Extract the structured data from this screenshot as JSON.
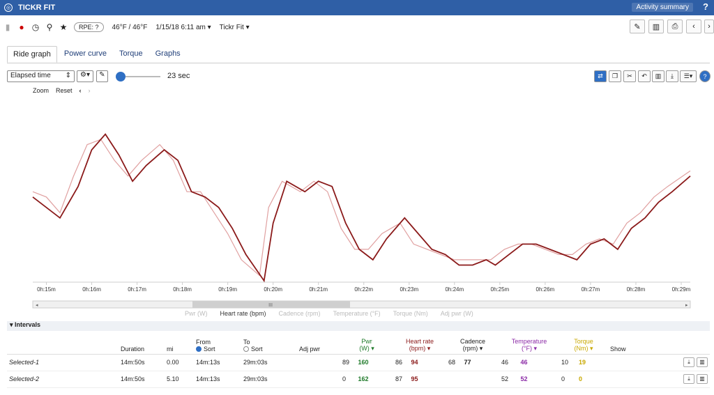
{
  "app": {
    "title": "TICKR FIT",
    "summary_label": "Activity summary",
    "help": "?"
  },
  "toolbar": {
    "rpe": "RPE: ?",
    "temp": "46°F / 46°F",
    "datetime": "1/15/18 6:11 am ▾",
    "device": "Tickr Fit ▾"
  },
  "tabs": [
    "Ride graph",
    "Power curve",
    "Torque",
    "Graphs"
  ],
  "controls": {
    "x_mode": "Elapsed time",
    "smoothing_value": "23 sec",
    "zoom": "Zoom",
    "reset": "Reset"
  },
  "legend": [
    "Pwr (W)",
    "Heart rate (bpm)",
    "Cadence (rpm)",
    "Temperature (°F)",
    "Torque (Nm)",
    "Adj pwr (W)"
  ],
  "colors": {
    "header": "#2f5fa6",
    "hr": "#8b1a1a",
    "hr_light": "#e0a0a0",
    "pwr": "#1f7a2a",
    "temp": "#8b2aa6",
    "torque": "#c8a800"
  },
  "chart_data": {
    "type": "line",
    "x_ticks": [
      "0h:15m",
      "0h:16m",
      "0h:17m",
      "0h:18m",
      "0h:19m",
      "0h:20m",
      "0h:21m",
      "0h:22m",
      "0h:23m",
      "0h:24m",
      "0h:25m",
      "0h:26m",
      "0h:27m",
      "0h:28m",
      "0h:29m"
    ],
    "xlim": [
      14.7,
      29.2
    ],
    "ylim": [
      79,
      112
    ],
    "series": [
      {
        "name": "Heart rate (bpm)",
        "x": [
          14.7,
          15.0,
          15.3,
          15.7,
          16.0,
          16.3,
          16.6,
          16.9,
          17.2,
          17.6,
          17.9,
          18.2,
          18.5,
          18.8,
          19.1,
          19.4,
          19.8,
          20.0,
          20.3,
          20.7,
          21.0,
          21.3,
          21.6,
          21.9,
          22.2,
          22.5,
          22.9,
          23.2,
          23.5,
          23.8,
          24.1,
          24.4,
          24.7,
          24.9,
          25.2,
          25.5,
          25.8,
          26.1,
          26.4,
          26.7,
          27.0,
          27.3,
          27.6,
          27.9,
          28.2,
          28.5,
          28.8,
          29.2
        ],
        "values": [
          95,
          93,
          91,
          97,
          104,
          107,
          103,
          98,
          101,
          104,
          102,
          96,
          95,
          93,
          89,
          84,
          79,
          90,
          98,
          96,
          98,
          97,
          90,
          85,
          83,
          87,
          91,
          88,
          85,
          84,
          82,
          82,
          83,
          82,
          84,
          86,
          86,
          85,
          84,
          83,
          86,
          87,
          85,
          89,
          91,
          94,
          96,
          99
        ]
      },
      {
        "name": "Heart rate (smoothed)",
        "x": [
          14.7,
          15.0,
          15.3,
          15.6,
          15.9,
          16.2,
          16.5,
          16.8,
          17.1,
          17.5,
          17.8,
          18.1,
          18.4,
          18.7,
          19.0,
          19.3,
          19.7,
          19.9,
          20.2,
          20.6,
          20.9,
          21.2,
          21.5,
          21.8,
          22.1,
          22.4,
          22.8,
          23.1,
          23.4,
          23.7,
          24.0,
          24.3,
          24.6,
          24.8,
          25.1,
          25.4,
          25.7,
          26.0,
          26.3,
          26.6,
          26.9,
          27.2,
          27.5,
          27.8,
          28.1,
          28.4,
          28.7,
          29.2
        ],
        "values": [
          96,
          95,
          92,
          99,
          105,
          106,
          102,
          99,
          102,
          105,
          102,
          96,
          96,
          92,
          88,
          83,
          80,
          93,
          98,
          96,
          98,
          96,
          89,
          85,
          85,
          88,
          90,
          86,
          85,
          84,
          83,
          83,
          83,
          83,
          85,
          86,
          86,
          85,
          84,
          84,
          86,
          87,
          86,
          90,
          92,
          95,
          97,
          100
        ]
      }
    ]
  },
  "intervals": {
    "header": "▾ Intervals",
    "columns": {
      "duration": "Duration",
      "mi": "mi",
      "from": "From",
      "from_sort": "Sort",
      "to": "To",
      "to_sort": "Sort",
      "adj_pwr": "Adj pwr",
      "pwr": "Pwr",
      "pwr_unit": "(W) ▾",
      "hr": "Heart rate",
      "hr_unit": "(bpm) ▾",
      "cad": "Cadence",
      "cad_unit": "(rpm) ▾",
      "temp": "Temperature",
      "temp_unit": "(°F) ▾",
      "torque": "Torque",
      "torque_unit": "(Nm) ▾",
      "show": "Show"
    },
    "rows": [
      {
        "name": "Selected-1",
        "duration": "14m:50s",
        "mi": "0.00",
        "from": "14m:13s",
        "to": "29m:03s",
        "pwr_avg": "89",
        "pwr_max": "160",
        "hr_avg": "86",
        "hr_max": "94",
        "cad_avg": "68",
        "cad_max": "77",
        "temp_avg": "46",
        "temp_max": "46",
        "tq_avg": "10",
        "tq_max": "19"
      },
      {
        "name": "Selected-2",
        "duration": "14m:50s",
        "mi": "5.10",
        "from": "14m:13s",
        "to": "29m:03s",
        "pwr_avg": "0",
        "pwr_max": "162",
        "hr_avg": "87",
        "hr_max": "95",
        "cad_avg": "",
        "cad_max": "",
        "temp_avg": "52",
        "temp_max": "52",
        "tq_avg": "0",
        "tq_max": "0"
      }
    ]
  }
}
